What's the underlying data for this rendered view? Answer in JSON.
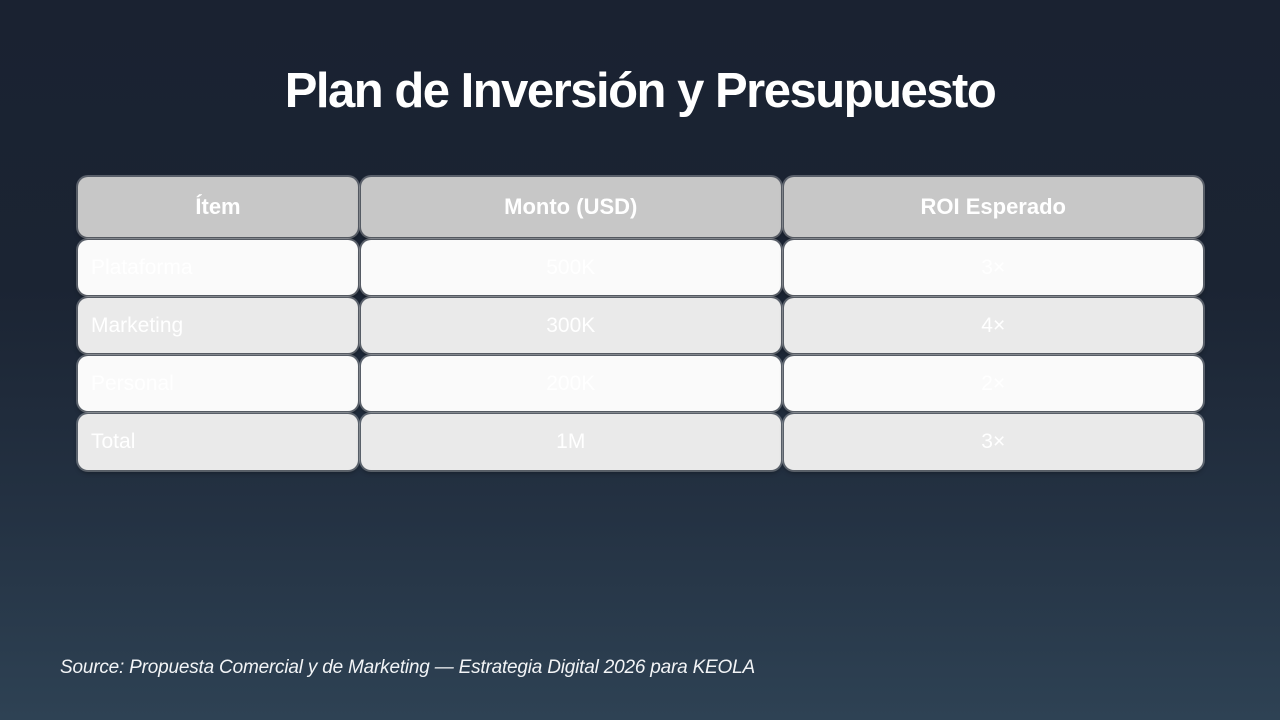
{
  "slide": {
    "title": "Plan de Inversión y Presupuesto",
    "source": "Source: Propuesta Comercial y de Marketing — Estrategia Digital 2026 para KEOLA"
  },
  "table": {
    "columns": [
      "Ítem",
      "Monto (USD)",
      "ROI Esperado"
    ],
    "rows": [
      {
        "item": "Plataforma",
        "monto": "500K",
        "roi": "3×"
      },
      {
        "item": "Marketing",
        "monto": "300K",
        "roi": "4×"
      },
      {
        "item": "Personal",
        "monto": "200K",
        "roi": "2×"
      },
      {
        "item": "Total",
        "monto": "1M",
        "roi": "3×"
      }
    ]
  },
  "colors": {
    "background_top": "#1a2231",
    "background_bottom": "#2e4254",
    "header_cell": "#c7c7c7",
    "row_light": "#fafafa",
    "row_dark": "#eaeaea",
    "text": "#ffffff"
  }
}
